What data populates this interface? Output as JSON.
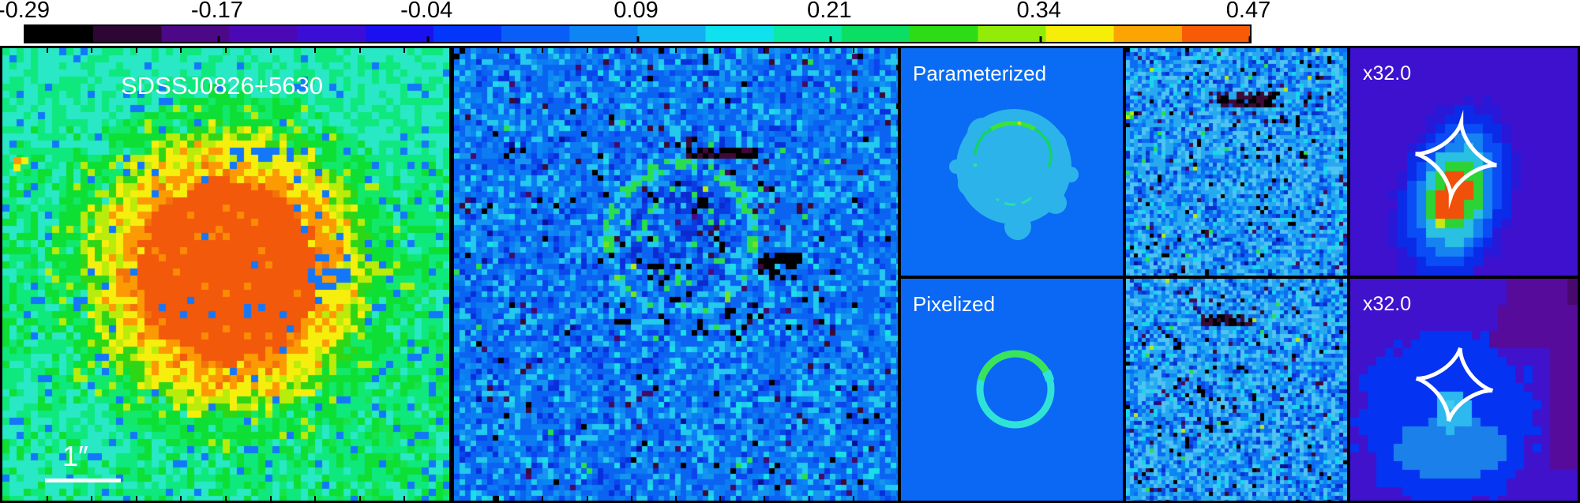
{
  "figure": {
    "panels": {
      "galaxy": {
        "label": "SDSSJ0826+5630",
        "scale_bar_label": "1″"
      },
      "parameterized": {
        "label": "Parameterized"
      },
      "pixelized": {
        "label": "Pixelized"
      },
      "source_zoom_top": {
        "label": "x32.0"
      },
      "source_zoom_bottom": {
        "label": "x32.0"
      }
    },
    "colors": {
      "label_text": "#ffffff",
      "tick_text": "#000000",
      "frame": "#000000",
      "galaxy_core": "#f2590a",
      "galaxy_core_bright": "#fb8b05",
      "galaxy_ring_orange": "#fc9a03",
      "galaxy_ring_yellow": "#f6ef0d",
      "galaxy_ring_yellowgreen": "#b9ec0b",
      "galaxy_outer_green": "#0ddf35",
      "galaxy_outer_springgreen": "#0ee87d",
      "galaxy_outer_cyan": "#29e8c5",
      "speckle_blue": "#1377fa",
      "residual_base": "#0b63f2",
      "residual_light": "#0b7cf2",
      "residual_cyan": "#24c9ee",
      "residual_dark": "#0730dc",
      "speck_black": "#000000",
      "speck_purple": "#440a66",
      "speck_maroon": "#3c0a33",
      "arc_green": "#2ade4e",
      "param_bg": "#0a6cf4",
      "param_disk": "#2cb3e9",
      "param_arc": "#12d463",
      "param_arc_bright": "#3ce23a",
      "param_bottom_arc": "#2ae0a8",
      "pixel_bg": "#0a68f4",
      "pixel_ring": "#2fe3d6",
      "pixel_ring_green": "#39e45c",
      "model_residual_base": "#27a9f0",
      "source_bg": "#3e11ce",
      "source_bg_bottom": "#4012cc",
      "source_core": "#f0500a",
      "source_green": "#2cd334",
      "source_cyan": "#29c0e2",
      "source_blue": "#0533f2",
      "source_lightblue": "#1b80ea",
      "source_patch_cyan": "#2db9ef",
      "source_purple": "#560b9b",
      "caustic": "#ffffff"
    }
  },
  "chart_data": {
    "type": "heatmap",
    "title": "SDSSJ0826+5630",
    "colorbar": {
      "orientation": "horizontal",
      "min": -0.29,
      "max": 0.47,
      "tick_values": [
        -0.29,
        -0.17,
        -0.04,
        0.09,
        0.21,
        0.34,
        0.47
      ],
      "tick_labels": [
        "-0.29",
        "-0.17",
        "-0.04",
        "0.09",
        "0.21",
        "0.34",
        "0.47"
      ],
      "palette": [
        "#000000",
        "#2e0636",
        "#4c0887",
        "#4a09b4",
        "#3b0ed8",
        "#1b10f0",
        "#0435fa",
        "#0a5ef8",
        "#0d85f4",
        "#14aef2",
        "#0fe2ee",
        "#0ce8a8",
        "#0adf63",
        "#2cdd16",
        "#92ec07",
        "#f4ee08",
        "#fba402",
        "#f85a06"
      ]
    },
    "panels": [
      {
        "position": "far-left",
        "annotation": "SDSSJ0826+5630",
        "scale_bar": "1″",
        "content": "galaxy image"
      },
      {
        "position": "center-left",
        "annotation": "",
        "content": "galaxy-subtracted residual with faint ring arc"
      },
      {
        "position": "middle-top",
        "annotation": "Parameterized",
        "content": "lensed model image with arc ring"
      },
      {
        "position": "middle-bottom",
        "annotation": "Pixelized",
        "content": "lensed model image with ring"
      },
      {
        "position": "center-right-top",
        "annotation": "",
        "content": "model residual"
      },
      {
        "position": "center-right-bottom",
        "annotation": "",
        "content": "model residual"
      },
      {
        "position": "far-right-top",
        "annotation": "x32.0",
        "content": "zoomed source plane with caustic curve"
      },
      {
        "position": "far-right-bottom",
        "annotation": "x32.0",
        "content": "zoomed source plane with caustic curve"
      }
    ]
  }
}
